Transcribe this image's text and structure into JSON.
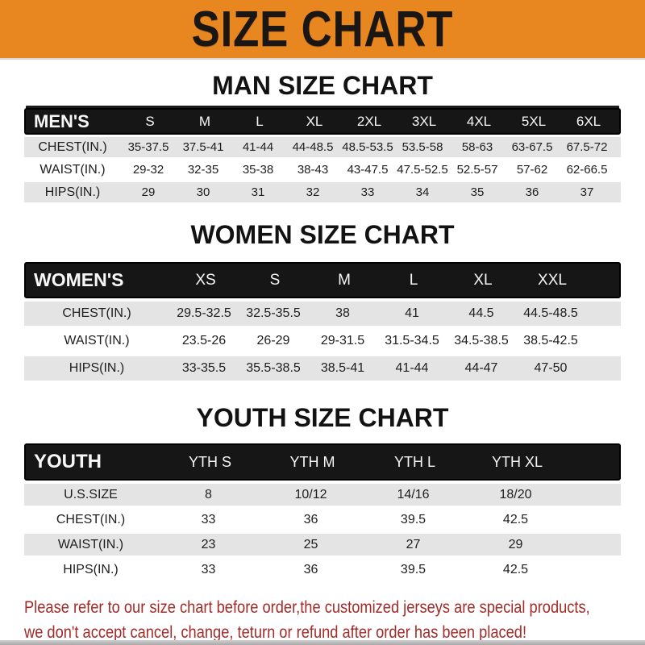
{
  "banner": {
    "title": "SIZE CHART",
    "bg_color": "#E8861F",
    "text_color": "#191613"
  },
  "colors": {
    "table_header_bg": "#161616",
    "row_stripe": "#E4E4E4",
    "footer_text": "#A32C28"
  },
  "sections": [
    {
      "heading": "MAN SIZE CHART",
      "header_label": "MEN'S",
      "columns": [
        "S",
        "M",
        "L",
        "XL",
        "2XL",
        "3XL",
        "4XL",
        "5XL",
        "6XL"
      ],
      "rows": [
        {
          "label": "CHEST(IN.)",
          "values": [
            "35-37.5",
            "37.5-41",
            "41-44",
            "44-48.5",
            "48.5-53.5",
            "53.5-58",
            "58-63",
            "63-67.5",
            "67.5-72"
          ]
        },
        {
          "label": "WAIST(IN.)",
          "values": [
            "29-32",
            "32-35",
            "35-38",
            "38-43",
            "43-47.5",
            "47.5-52.5",
            "52.5-57",
            "57-62",
            "62-66.5"
          ]
        },
        {
          "label": "HIPS(IN.)",
          "values": [
            "29",
            "30",
            "31",
            "32",
            "33",
            "34",
            "35",
            "36",
            "37"
          ]
        }
      ]
    },
    {
      "heading": "WOMEN SIZE CHART",
      "header_label": "WOMEN'S",
      "columns": [
        "XS",
        "S",
        "M",
        "L",
        "XL",
        "XXL"
      ],
      "rows": [
        {
          "label": "CHEST(IN.)",
          "values": [
            "29.5-32.5",
            "32.5-35.5",
            "38",
            "41",
            "44.5",
            "44.5-48.5"
          ]
        },
        {
          "label": "WAIST(IN.)",
          "values": [
            "23.5-26",
            "26-29",
            "29-31.5",
            "31.5-34.5",
            "34.5-38.5",
            "38.5-42.5"
          ]
        },
        {
          "label": "HIPS(IN.)",
          "values": [
            "33-35.5",
            "35.5-38.5",
            "38.5-41",
            "41-44",
            "44-47",
            "47-50"
          ]
        }
      ]
    },
    {
      "heading": "YOUTH SIZE CHART",
      "header_label": "YOUTH",
      "columns": [
        "YTH S",
        "YTH M",
        "YTH L",
        "YTH XL"
      ],
      "rows": [
        {
          "label": "U.S.SIZE",
          "values": [
            "8",
            "10/12",
            "14/16",
            "18/20"
          ]
        },
        {
          "label": "CHEST(IN.)",
          "values": [
            "33",
            "36",
            "39.5",
            "42.5"
          ]
        },
        {
          "label": "WAIST(IN.)",
          "values": [
            "23",
            "25",
            "27",
            "29"
          ]
        },
        {
          "label": "HIPS(IN.)",
          "values": [
            "33",
            "36",
            "39.5",
            "42.5"
          ]
        }
      ]
    }
  ],
  "footer_note": {
    "line1": "Please refer to our size chart before order,the customized jerseys are special products,",
    "line2": "we don't accept cancel, change, teturn or refund after order has been placed!"
  }
}
